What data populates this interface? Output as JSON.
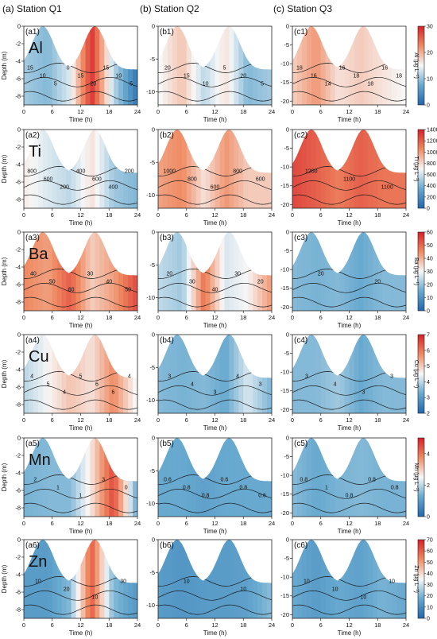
{
  "headers": [
    "(a) Station Q1",
    "(b) Station Q2",
    "(c) Station Q3"
  ],
  "x_axis": {
    "label": "Time (h)",
    "ticks": [
      0,
      6,
      12,
      18,
      24
    ],
    "range": [
      0,
      24
    ]
  },
  "y_axis_label": "Depth (m)",
  "colors": {
    "low": "#2166ac",
    "mid": "#f7f7f7",
    "high": "#d6202a",
    "contour": "#1a1a1a"
  },
  "chart_data": [
    {
      "row": 1,
      "element": "Al",
      "cbar_label": "Al (μg L⁻¹)",
      "cbar_ticks": [
        0,
        10,
        20,
        30
      ],
      "cbar_range": [
        0,
        30
      ],
      "panels": [
        {
          "label": "(a1)",
          "yticks": [
            -8,
            -6,
            -4,
            -2,
            0
          ],
          "ylim": [
            -9,
            0
          ],
          "contour_labels": [
            "15",
            "10",
            "5",
            "0",
            "15",
            "20",
            "15",
            "10",
            "5"
          ]
        },
        {
          "label": "(b1)",
          "yticks": [
            -10,
            -5,
            0
          ],
          "ylim": [
            -12,
            0
          ],
          "contour_labels": [
            "20",
            "15",
            "10",
            "5",
            "20",
            "5"
          ]
        },
        {
          "label": "(c1)",
          "yticks": [
            -20,
            -15,
            -10,
            -5,
            0
          ],
          "ylim": [
            -21,
            0
          ],
          "contour_labels": [
            "18",
            "16",
            "14",
            "16",
            "18",
            "18",
            "16",
            "18"
          ]
        }
      ]
    },
    {
      "row": 2,
      "element": "Ti",
      "cbar_label": "Ti (μg L⁻¹)",
      "cbar_ticks": [
        0,
        200,
        400,
        600,
        800,
        1000,
        1200,
        1400
      ],
      "cbar_range": [
        0,
        1400
      ],
      "panels": [
        {
          "label": "(a2)",
          "yticks": [
            -8,
            -6,
            -4,
            -2,
            0
          ],
          "ylim": [
            -9,
            0
          ],
          "contour_labels": [
            "800",
            "600",
            "200",
            "400",
            "600",
            "400",
            "200"
          ]
        },
        {
          "label": "(b2)",
          "yticks": [
            -10,
            -5,
            0
          ],
          "ylim": [
            -12,
            0
          ],
          "contour_labels": [
            "1000",
            "800",
            "600",
            "800",
            "600"
          ]
        },
        {
          "label": "(c2)",
          "yticks": [
            -20,
            -15,
            -10,
            -5,
            0
          ],
          "ylim": [
            -21,
            0
          ],
          "contour_labels": [
            "1200",
            "1100",
            "1100"
          ]
        }
      ]
    },
    {
      "row": 3,
      "element": "Ba",
      "cbar_label": "Ba (μg L⁻¹)",
      "cbar_ticks": [
        0,
        10,
        20,
        30,
        40,
        50,
        60
      ],
      "cbar_range": [
        0,
        60
      ],
      "panels": [
        {
          "label": "(a3)",
          "yticks": [
            -8,
            -6,
            -4,
            -2,
            0
          ],
          "ylim": [
            -9,
            0
          ],
          "contour_labels": [
            "40",
            "50",
            "60",
            "30",
            "40",
            "50"
          ]
        },
        {
          "label": "(b3)",
          "yticks": [
            -10,
            -5,
            0
          ],
          "ylim": [
            -12,
            0
          ],
          "contour_labels": [
            "20",
            "30",
            "40",
            "30",
            "20"
          ]
        },
        {
          "label": "(c3)",
          "yticks": [
            -20,
            -15,
            -10,
            -5,
            0
          ],
          "ylim": [
            -21,
            0
          ],
          "contour_labels": [
            "20",
            "20"
          ]
        }
      ]
    },
    {
      "row": 4,
      "element": "Cu",
      "cbar_label": "Cu (μg L⁻¹)",
      "cbar_ticks": [
        2,
        3,
        4,
        5,
        6,
        7
      ],
      "cbar_range": [
        2,
        7
      ],
      "panels": [
        {
          "label": "(a4)",
          "yticks": [
            -8,
            -6,
            -4,
            -2,
            0
          ],
          "ylim": [
            -9,
            0
          ],
          "contour_labels": [
            "4",
            "5",
            "4",
            "5",
            "6",
            "6",
            "4"
          ]
        },
        {
          "label": "(b4)",
          "yticks": [
            -10,
            -5,
            0
          ],
          "ylim": [
            -12,
            0
          ],
          "contour_labels": [
            "3",
            "4",
            "3",
            "4",
            "3"
          ]
        },
        {
          "label": "(c4)",
          "yticks": [
            -20,
            -15,
            -10,
            -5,
            0
          ],
          "ylim": [
            -21,
            0
          ],
          "contour_labels": [
            "3",
            "4",
            "3",
            "3"
          ]
        }
      ]
    },
    {
      "row": 5,
      "element": "Mn",
      "cbar_label": "Mn (μg L⁻¹)",
      "cbar_ticks": [
        0,
        2,
        4
      ],
      "cbar_range": [
        0,
        5
      ],
      "panels": [
        {
          "label": "(a5)",
          "yticks": [
            -8,
            -6,
            -4,
            -2,
            0
          ],
          "ylim": [
            -9,
            0
          ],
          "contour_labels": [
            "2",
            "1",
            "1",
            "3",
            "0"
          ]
        },
        {
          "label": "(b5)",
          "yticks": [
            -10,
            -5,
            0
          ],
          "ylim": [
            -12,
            0
          ],
          "contour_labels": [
            "0.6",
            "0.8",
            "0.8",
            "0.6",
            "0.8",
            "0.6"
          ]
        },
        {
          "label": "(c5)",
          "yticks": [
            -20,
            -15,
            -10,
            -5,
            0
          ],
          "ylim": [
            -21,
            0
          ],
          "contour_labels": [
            "0.8",
            "1",
            "0.8",
            "0.8",
            "0.8"
          ]
        }
      ]
    },
    {
      "row": 6,
      "element": "Zn",
      "cbar_label": "Zn (μg L⁻¹)",
      "cbar_ticks": [
        0,
        10,
        20,
        30,
        40,
        50,
        60,
        70
      ],
      "cbar_range": [
        0,
        70
      ],
      "panels": [
        {
          "label": "(a6)",
          "yticks": [
            -8,
            -6,
            -4,
            -2,
            0
          ],
          "ylim": [
            -9,
            0
          ],
          "contour_labels": [
            "10",
            "20",
            "10",
            "30"
          ]
        },
        {
          "label": "(b6)",
          "yticks": [
            -10,
            -5,
            0
          ],
          "ylim": [
            -12,
            0
          ],
          "contour_labels": [
            "10",
            "10"
          ]
        },
        {
          "label": "(c6)",
          "yticks": [
            -20,
            -15,
            -10,
            -5,
            0
          ],
          "ylim": [
            -21,
            0
          ],
          "contour_labels": [
            "10",
            "10",
            "10",
            "10"
          ]
        }
      ]
    }
  ]
}
